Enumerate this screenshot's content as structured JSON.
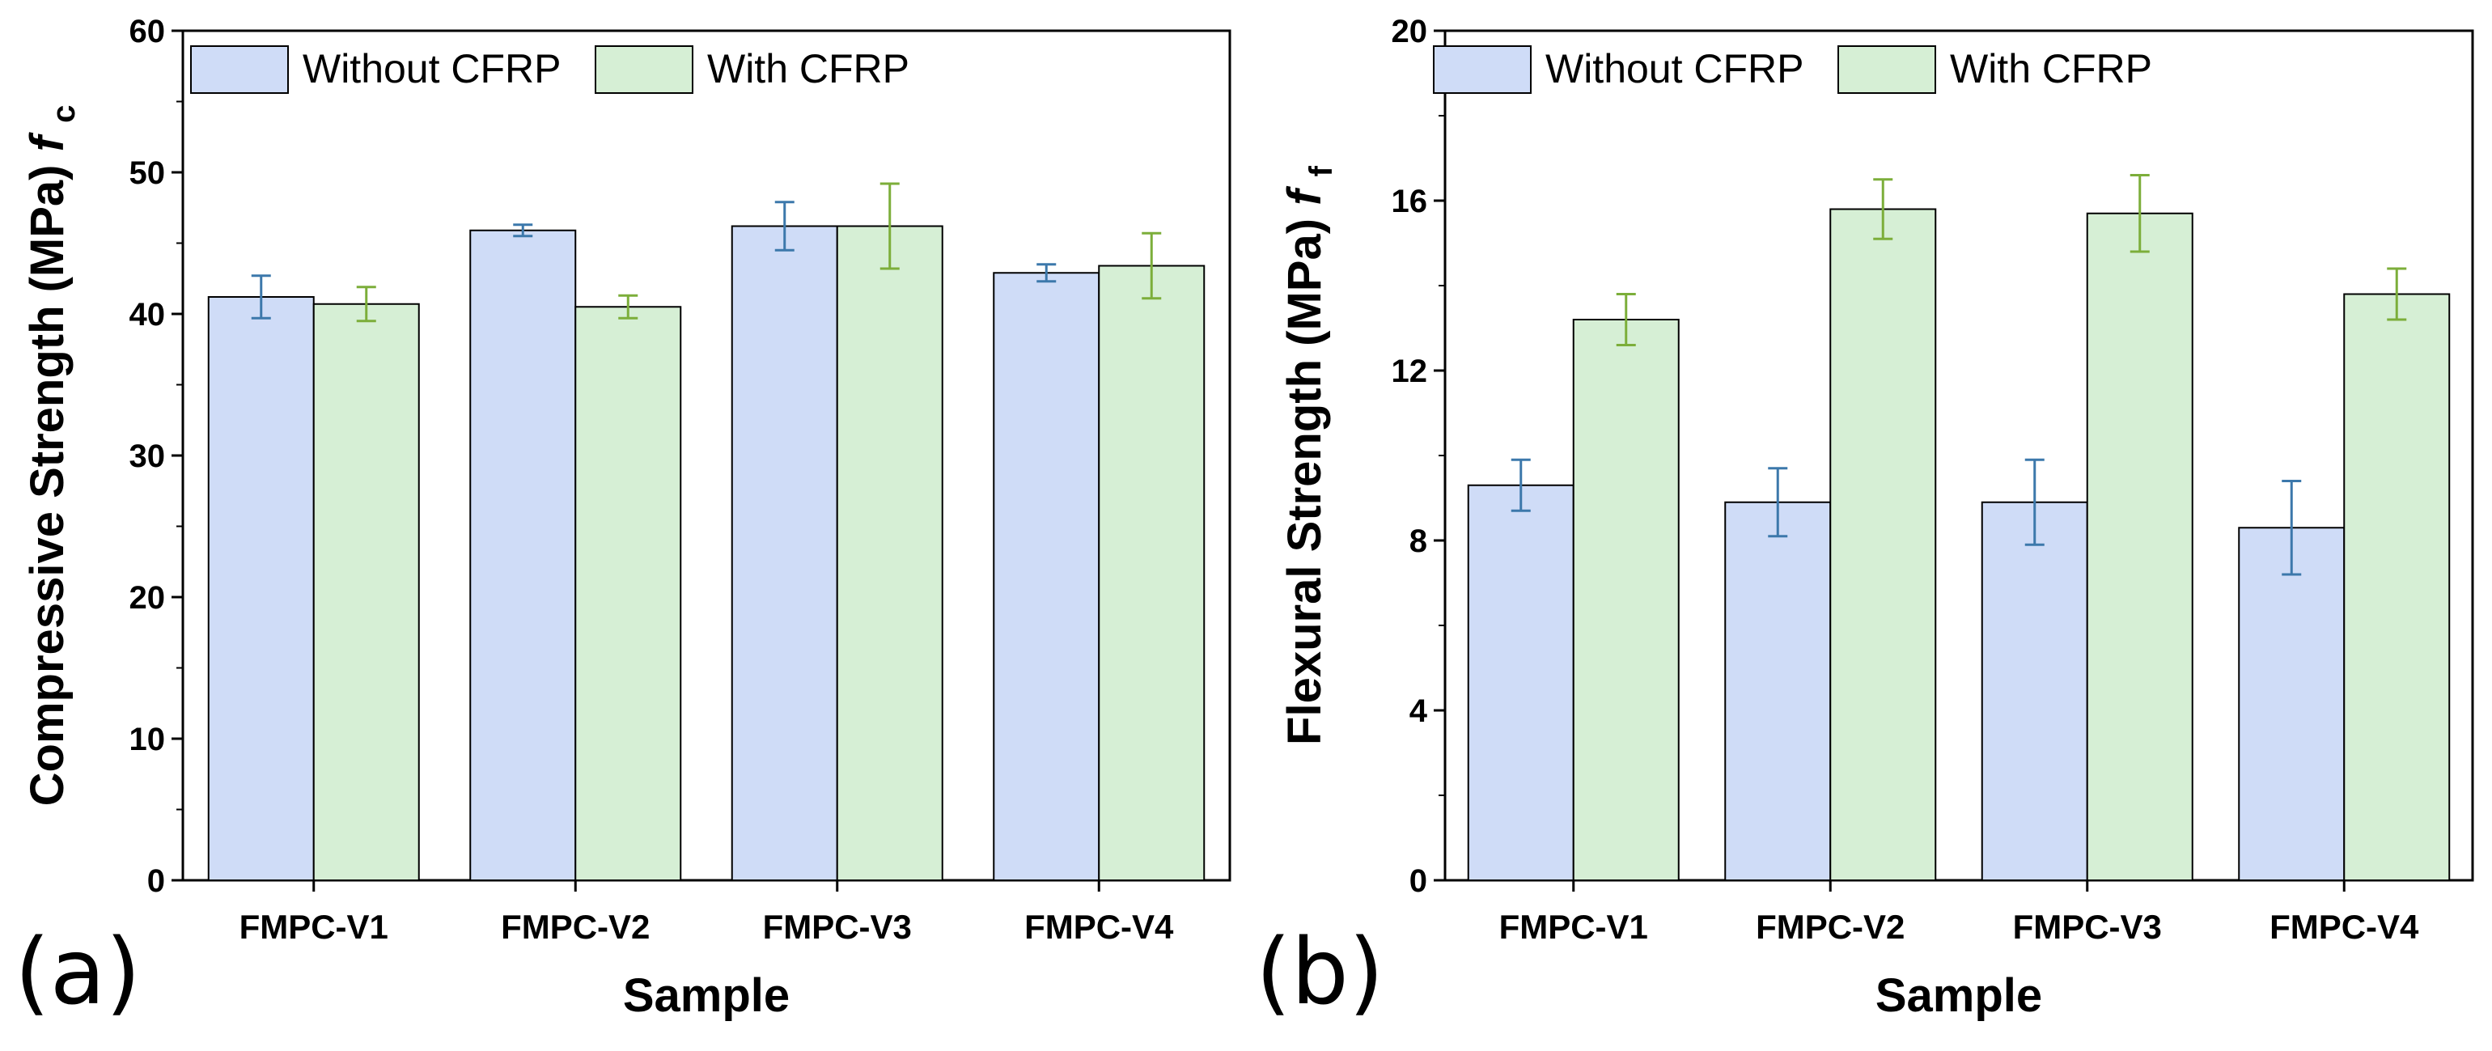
{
  "chart_data": [
    {
      "panel_label": "(a)",
      "type": "bar",
      "xlabel": "Sample",
      "ylabel": "Compressive Strength (MPa)",
      "ylabel_symbol": "f",
      "ylabel_subscript": "c",
      "ylim": [
        0,
        60
      ],
      "yticks": [
        "0",
        "10",
        "20",
        "30",
        "40",
        "50",
        "60"
      ],
      "categories": [
        "FMPC-V1",
        "FMPC-V2",
        "FMPC-V3",
        "FMPC-V4"
      ],
      "series": [
        {
          "name": "Without CFRP",
          "color": "#cfdcf7",
          "error_color": "#3c78ab",
          "values": [
            41.2,
            45.9,
            46.2,
            42.9
          ],
          "errors": [
            1.5,
            0.4,
            1.7,
            0.6
          ]
        },
        {
          "name": "With CFRP",
          "color": "#d6efd5",
          "error_color": "#7cae3a",
          "values": [
            40.7,
            40.5,
            46.2,
            43.4
          ],
          "errors": [
            1.2,
            0.8,
            3.0,
            2.3
          ]
        }
      ],
      "legend_position": "top-left",
      "grid": false
    },
    {
      "panel_label": "(b)",
      "type": "bar",
      "xlabel": "Sample",
      "ylabel": "Flexural Strength (MPa)",
      "ylabel_symbol": "f",
      "ylabel_subscript": "f",
      "ylim": [
        0,
        20
      ],
      "yticks": [
        "0",
        "4",
        "8",
        "12",
        "16",
        "20"
      ],
      "categories": [
        "FMPC-V1",
        "FMPC-V2",
        "FMPC-V3",
        "FMPC-V4"
      ],
      "series": [
        {
          "name": "Without CFRP",
          "color": "#cfdcf7",
          "error_color": "#3c78ab",
          "values": [
            9.3,
            8.9,
            8.9,
            8.3
          ],
          "errors": [
            0.6,
            0.8,
            1.0,
            1.1
          ]
        },
        {
          "name": "With CFRP",
          "color": "#d6efd5",
          "error_color": "#7cae3a",
          "values": [
            13.2,
            15.8,
            15.7,
            13.8
          ],
          "errors": [
            0.6,
            0.7,
            0.9,
            0.6
          ]
        }
      ],
      "legend_position": "top-left",
      "grid": false
    }
  ]
}
